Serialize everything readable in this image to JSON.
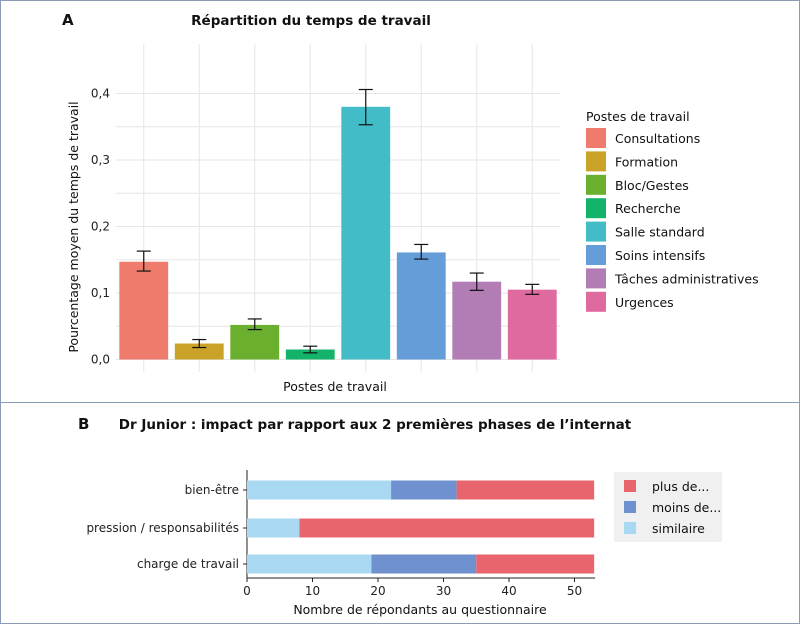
{
  "chart_data": [
    {
      "panel": "A",
      "type": "bar",
      "title": "Répartition du temps de travail",
      "xlabel": "Postes de travail",
      "ylabel": "Pourcentage moyen du temps de travail",
      "ylim": [
        0,
        0.45
      ],
      "yticks": [
        "0,0",
        "0,1",
        "0,2",
        "0,3",
        "0,4"
      ],
      "grid": true,
      "legend": {
        "title": "Postes de travail",
        "placement": "right"
      },
      "categories": [
        "Consultations",
        "Formation",
        "Bloc/Gestes",
        "Recherche",
        "Salle standard",
        "Soins intensifs",
        "Tâches administratives",
        "Urgences"
      ],
      "values": [
        0.147,
        0.024,
        0.052,
        0.015,
        0.38,
        0.161,
        0.117,
        0.105
      ],
      "error_low": [
        0.133,
        0.018,
        0.045,
        0.01,
        0.353,
        0.151,
        0.104,
        0.098
      ],
      "error_high": [
        0.163,
        0.03,
        0.061,
        0.02,
        0.406,
        0.173,
        0.13,
        0.113
      ],
      "colors": [
        "#ee7b6b",
        "#c9a227",
        "#6ab02e",
        "#13b36a",
        "#42bcc6",
        "#659dd8",
        "#b27db4",
        "#df6aa0"
      ]
    },
    {
      "panel": "B",
      "type": "bar",
      "orientation": "horizontal",
      "stacked": true,
      "title": "Dr Junior : impact par rapport aux 2 premières phases de l’internat",
      "xlabel": "Nombre de répondants au questionnaire",
      "ylabel": "",
      "xlim": [
        0,
        53
      ],
      "xticks": [
        "0",
        "10",
        "20",
        "30",
        "40",
        "50"
      ],
      "grid": false,
      "legend": {
        "placement": "right"
      },
      "categories": [
        "bien-être",
        "pression / responsabilités",
        "charge de travail"
      ],
      "series": [
        {
          "name": "similaire",
          "color": "#a8d8f2",
          "values": [
            22,
            8,
            19
          ]
        },
        {
          "name": "moins de...",
          "color": "#6f91cf",
          "values": [
            10,
            0,
            16
          ]
        },
        {
          "name": "plus de...",
          "color": "#e9656d",
          "values": [
            21,
            45,
            18
          ]
        }
      ],
      "legend_order": [
        "plus de...",
        "moins de...",
        "similaire"
      ]
    }
  ],
  "panel_letters": [
    "A",
    "B"
  ]
}
